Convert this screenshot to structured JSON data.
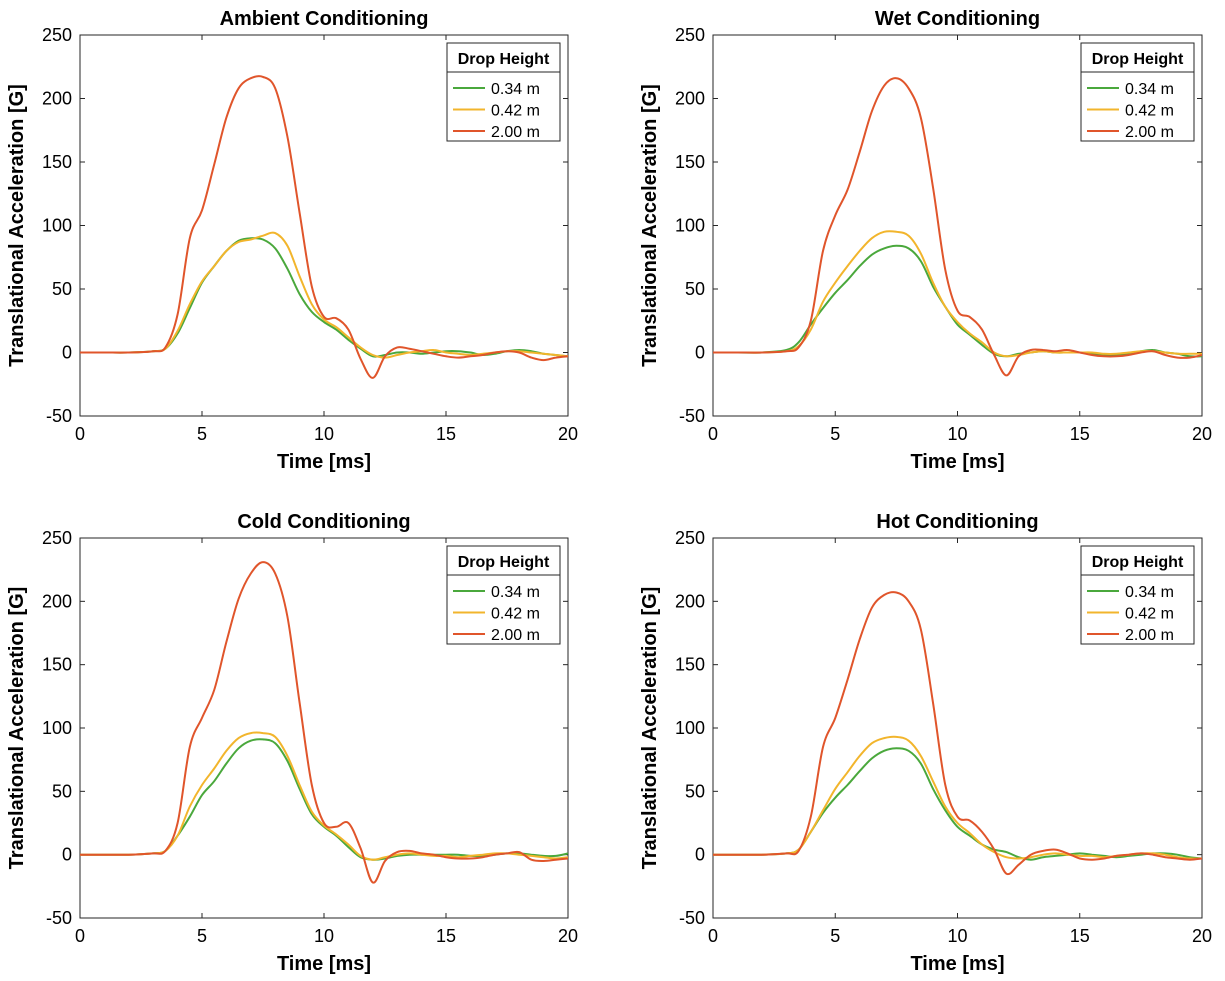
{
  "chart_data": [
    {
      "type": "line",
      "title": "Ambient Conditioning",
      "xlabel": "Time [ms]",
      "ylabel": "Translational Acceleration [G]",
      "xlim": [
        0,
        20
      ],
      "ylim": [
        -50,
        250
      ],
      "xticks": [
        0,
        5,
        10,
        15,
        20
      ],
      "yticks": [
        -50,
        0,
        50,
        100,
        150,
        200,
        250
      ],
      "grid": false,
      "legend": {
        "title": "Drop Height",
        "position": "top-right"
      },
      "x": [
        0,
        1,
        2,
        3,
        3.5,
        4,
        4.5,
        5,
        5.5,
        6,
        6.5,
        7,
        7.5,
        8,
        8.5,
        9,
        9.5,
        10,
        10.5,
        11,
        11.5,
        12,
        12.5,
        13,
        13.5,
        14,
        14.5,
        15,
        15.5,
        16,
        16.5,
        17,
        17.5,
        18,
        18.5,
        19,
        19.5,
        20
      ],
      "series": [
        {
          "name": "0.34 m",
          "color": "#4aa83c",
          "values": [
            0,
            0,
            0,
            1,
            3,
            15,
            35,
            55,
            68,
            80,
            88,
            90,
            89,
            82,
            66,
            46,
            32,
            24,
            18,
            10,
            3,
            -3,
            -2,
            0,
            0,
            -1,
            0,
            1,
            1,
            0,
            -2,
            -1,
            1,
            2,
            1,
            -1,
            -2,
            -3
          ]
        },
        {
          "name": "0.42 m",
          "color": "#f2b52c",
          "values": [
            0,
            0,
            0,
            1,
            3,
            17,
            38,
            56,
            68,
            80,
            87,
            89,
            92,
            94,
            84,
            60,
            38,
            26,
            20,
            12,
            4,
            -2,
            -4,
            -2,
            0,
            1,
            2,
            0,
            -1,
            -2,
            -1,
            0,
            1,
            1,
            0,
            -1,
            -2,
            -3
          ]
        },
        {
          "name": "2.00 m",
          "color": "#e0552b",
          "values": [
            0,
            0,
            0,
            1,
            4,
            30,
            90,
            112,
            148,
            185,
            208,
            216,
            217,
            208,
            170,
            110,
            52,
            28,
            27,
            18,
            -5,
            -20,
            -3,
            4,
            3,
            1,
            -1,
            -3,
            -4,
            -3,
            -2,
            0,
            1,
            0,
            -4,
            -6,
            -4,
            -3
          ]
        }
      ]
    },
    {
      "type": "line",
      "title": "Wet Conditioning",
      "xlabel": "Time [ms]",
      "ylabel": "Translational Acceleration [G]",
      "xlim": [
        0,
        20
      ],
      "ylim": [
        -50,
        250
      ],
      "xticks": [
        0,
        5,
        10,
        15,
        20
      ],
      "yticks": [
        -50,
        0,
        50,
        100,
        150,
        200,
        250
      ],
      "grid": false,
      "legend": {
        "title": "Drop Height",
        "position": "top-right"
      },
      "x": [
        0,
        1,
        2,
        3,
        3.5,
        4,
        4.5,
        5,
        5.5,
        6,
        6.5,
        7,
        7.5,
        8,
        8.5,
        9,
        9.5,
        10,
        10.5,
        11,
        11.5,
        12,
        12.5,
        13,
        13.5,
        14,
        14.5,
        15,
        15.5,
        16,
        16.5,
        17,
        17.5,
        18,
        18.5,
        19,
        19.5,
        20
      ],
      "series": [
        {
          "name": "0.34 m",
          "color": "#4aa83c",
          "values": [
            0,
            0,
            0,
            2,
            8,
            22,
            35,
            47,
            57,
            68,
            77,
            82,
            84,
            82,
            72,
            52,
            36,
            22,
            14,
            6,
            -1,
            -3,
            -1,
            0,
            1,
            0,
            0,
            0,
            -1,
            -2,
            -2,
            -1,
            1,
            2,
            0,
            -1,
            -3,
            -3
          ]
        },
        {
          "name": "0.42 m",
          "color": "#f2b52c",
          "values": [
            0,
            0,
            0,
            1,
            5,
            18,
            40,
            55,
            68,
            80,
            90,
            95,
            95,
            92,
            78,
            55,
            36,
            24,
            15,
            8,
            0,
            -3,
            -2,
            0,
            1,
            0,
            0,
            0,
            0,
            -1,
            -1,
            0,
            1,
            1,
            0,
            -1,
            -1,
            -1
          ]
        },
        {
          "name": "2.00 m",
          "color": "#e0552b",
          "values": [
            0,
            0,
            0,
            1,
            4,
            25,
            80,
            108,
            128,
            158,
            190,
            210,
            216,
            208,
            185,
            130,
            65,
            33,
            28,
            18,
            -2,
            -18,
            -3,
            2,
            2,
            1,
            2,
            0,
            -2,
            -3,
            -3,
            -2,
            0,
            1,
            -2,
            -4,
            -4,
            -2
          ]
        }
      ]
    },
    {
      "type": "line",
      "title": "Cold Conditioning",
      "xlabel": "Time [ms]",
      "ylabel": "Translational Acceleration [G]",
      "xlim": [
        0,
        20
      ],
      "ylim": [
        -50,
        250
      ],
      "xticks": [
        0,
        5,
        10,
        15,
        20
      ],
      "yticks": [
        -50,
        0,
        50,
        100,
        150,
        200,
        250
      ],
      "grid": false,
      "legend": {
        "title": "Drop Height",
        "position": "top-right"
      },
      "x": [
        0,
        1,
        2,
        3,
        3.5,
        4,
        4.5,
        5,
        5.5,
        6,
        6.5,
        7,
        7.5,
        8,
        8.5,
        9,
        9.5,
        10,
        10.5,
        11,
        11.5,
        12,
        12.5,
        13,
        13.5,
        14,
        14.5,
        15,
        15.5,
        16,
        16.5,
        17,
        17.5,
        18,
        18.5,
        19,
        19.5,
        20
      ],
      "series": [
        {
          "name": "0.34 m",
          "color": "#4aa83c",
          "values": [
            0,
            0,
            0,
            1,
            3,
            15,
            30,
            47,
            58,
            72,
            84,
            90,
            91,
            88,
            74,
            52,
            32,
            22,
            15,
            6,
            -2,
            -4,
            -3,
            -1,
            0,
            0,
            0,
            0,
            0,
            -1,
            -1,
            0,
            1,
            1,
            0,
            -1,
            -1,
            1
          ]
        },
        {
          "name": "0.42 m",
          "color": "#f2b52c",
          "values": [
            0,
            0,
            0,
            1,
            3,
            15,
            38,
            55,
            68,
            82,
            92,
            96,
            96,
            93,
            78,
            55,
            34,
            23,
            16,
            8,
            -1,
            -4,
            -2,
            0,
            1,
            0,
            -1,
            -1,
            -2,
            -1,
            0,
            1,
            1,
            0,
            -1,
            -2,
            -3,
            -2
          ]
        },
        {
          "name": "2.00 m",
          "color": "#e0552b",
          "values": [
            0,
            0,
            0,
            1,
            3,
            25,
            85,
            108,
            130,
            168,
            202,
            222,
            231,
            222,
            188,
            120,
            55,
            25,
            22,
            25,
            5,
            -22,
            -5,
            2,
            3,
            1,
            0,
            -2,
            -3,
            -3,
            -2,
            0,
            1,
            2,
            -4,
            -5,
            -4,
            -3
          ]
        }
      ]
    },
    {
      "type": "line",
      "title": "Hot Conditioning",
      "xlabel": "Time [ms]",
      "ylabel": "Translational Acceleration [G]",
      "xlim": [
        0,
        20
      ],
      "ylim": [
        -50,
        250
      ],
      "xticks": [
        0,
        5,
        10,
        15,
        20
      ],
      "yticks": [
        -50,
        0,
        50,
        100,
        150,
        200,
        250
      ],
      "grid": false,
      "legend": {
        "title": "Drop Height",
        "position": "top-right"
      },
      "x": [
        0,
        1,
        2,
        3,
        3.5,
        4,
        4.5,
        5,
        5.5,
        6,
        6.5,
        7,
        7.5,
        8,
        8.5,
        9,
        9.5,
        10,
        10.5,
        11,
        11.5,
        12,
        12.5,
        13,
        13.5,
        14,
        14.5,
        15,
        15.5,
        16,
        16.5,
        17,
        17.5,
        18,
        18.5,
        19,
        19.5,
        20
      ],
      "series": [
        {
          "name": "0.34 m",
          "color": "#4aa83c",
          "values": [
            0,
            0,
            0,
            1,
            4,
            18,
            33,
            45,
            55,
            66,
            76,
            82,
            84,
            82,
            72,
            52,
            35,
            22,
            15,
            8,
            4,
            2,
            -2,
            -4,
            -2,
            -1,
            0,
            1,
            0,
            -1,
            -2,
            -1,
            0,
            1,
            1,
            0,
            -2,
            -3
          ]
        },
        {
          "name": "0.42 m",
          "color": "#f2b52c",
          "values": [
            0,
            0,
            0,
            1,
            4,
            18,
            35,
            52,
            65,
            78,
            88,
            92,
            93,
            90,
            78,
            58,
            38,
            25,
            17,
            8,
            2,
            -2,
            -3,
            -2,
            0,
            1,
            0,
            -1,
            -1,
            -2,
            -1,
            0,
            1,
            1,
            0,
            -2,
            -3,
            -3
          ]
        },
        {
          "name": "2.00 m",
          "color": "#e0552b",
          "values": [
            0,
            0,
            0,
            1,
            3,
            30,
            85,
            108,
            138,
            170,
            195,
            205,
            207,
            200,
            178,
            120,
            55,
            30,
            27,
            18,
            4,
            -15,
            -8,
            0,
            3,
            4,
            1,
            -3,
            -4,
            -3,
            -1,
            0,
            1,
            0,
            -2,
            -3,
            -4,
            -3
          ]
        }
      ]
    }
  ]
}
